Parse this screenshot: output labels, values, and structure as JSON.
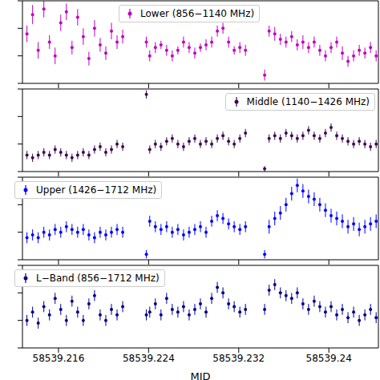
{
  "chart_data": {
    "type": "scatter",
    "xlabel": "MJD",
    "marker": "o",
    "tick_labels": "x",
    "xlim": [
      58539.2128,
      58539.2444
    ],
    "xticks": [
      58539.216,
      58539.224,
      58539.232,
      58539.24
    ],
    "ylim": [
      0,
      3
    ],
    "yticks": [
      0,
      1,
      2,
      3
    ],
    "x": [
      58539.2132,
      58539.2137,
      58539.2142,
      58539.2147,
      58539.2152,
      58539.2157,
      58539.2162,
      58539.2167,
      58539.2172,
      58539.2177,
      58539.2182,
      58539.2187,
      58539.2192,
      58539.2197,
      58539.2202,
      58539.2207,
      58539.2212,
      58539.2217,
      58539.2238,
      58539.2241,
      58539.2246,
      58539.2251,
      58539.2256,
      58539.2261,
      58539.2266,
      58539.2271,
      58539.2276,
      58539.2281,
      58539.2286,
      58539.2291,
      58539.2296,
      58539.2301,
      58539.2306,
      58539.2311,
      58539.2316,
      58539.2321,
      58539.2326,
      58539.2343,
      58539.2347,
      58539.2352,
      58539.2357,
      58539.2362,
      58539.2367,
      58539.2372,
      58539.2377,
      58539.2382,
      58539.2387,
      58539.2392,
      58539.2397,
      58539.2402,
      58539.2407,
      58539.2412,
      58539.2417,
      58539.2422,
      58539.2427,
      58539.2432,
      58539.2437,
      58539.2442
    ],
    "series": [
      {
        "name": "Lower (856−1140 MHz)",
        "color": "#bf00bf",
        "values": [
          1.8,
          2.5,
          1.2,
          2.7,
          1.5,
          1.0,
          2.2,
          2.6,
          1.3,
          2.4,
          1.7,
          0.9,
          2.0,
          1.4,
          1.1,
          1.9,
          1.5,
          1.7,
          1.5,
          1.0,
          1.3,
          1.4,
          1.2,
          1.0,
          1.2,
          1.5,
          1.3,
          1.1,
          1.3,
          1.4,
          1.5,
          1.9,
          2.0,
          1.5,
          1.2,
          1.3,
          1.2,
          0.3,
          1.9,
          1.8,
          1.6,
          1.5,
          1.7,
          1.4,
          1.5,
          1.3,
          1.5,
          1.2,
          1.0,
          1.3,
          1.5,
          1.1,
          0.8,
          1.0,
          1.2,
          1.1,
          1.3,
          1.0
        ],
        "errors": [
          0.3,
          0.35,
          0.3,
          0.3,
          0.25,
          0.3,
          0.3,
          0.3,
          0.25,
          0.3,
          0.3,
          0.25,
          0.3,
          0.25,
          0.25,
          0.3,
          0.25,
          0.25,
          0.2,
          0.2,
          0.2,
          0.15,
          0.2,
          0.2,
          0.15,
          0.2,
          0.2,
          0.2,
          0.15,
          0.2,
          0.2,
          0.2,
          0.2,
          0.2,
          0.15,
          0.2,
          0.2,
          0.2,
          0.2,
          0.25,
          0.2,
          0.2,
          0.2,
          0.2,
          0.25,
          0.2,
          0.2,
          0.2,
          0.2,
          0.2,
          0.2,
          0.25,
          0.2,
          0.2,
          0.2,
          0.2,
          0.2,
          0.2
        ]
      },
      {
        "name": "Middle (1140−1426 MHz)",
        "color": "#3d0a4f",
        "values": [
          0.6,
          0.5,
          0.6,
          0.7,
          0.6,
          0.8,
          0.7,
          0.6,
          0.5,
          0.6,
          0.7,
          0.6,
          0.8,
          0.9,
          0.7,
          0.8,
          1.0,
          0.9,
          2.8,
          0.8,
          1.0,
          0.9,
          1.1,
          1.2,
          1.0,
          0.9,
          1.1,
          1.2,
          1.0,
          1.1,
          1.0,
          1.2,
          1.3,
          1.1,
          1.0,
          1.2,
          1.4,
          0.1,
          1.2,
          1.3,
          1.2,
          1.4,
          1.3,
          1.2,
          1.3,
          1.5,
          1.3,
          1.2,
          1.4,
          1.6,
          1.3,
          1.2,
          1.1,
          1.0,
          1.1,
          1.0,
          0.9,
          1.0
        ],
        "errors": [
          0.15,
          0.15,
          0.15,
          0.15,
          0.15,
          0.15,
          0.15,
          0.15,
          0.15,
          0.15,
          0.15,
          0.15,
          0.15,
          0.15,
          0.15,
          0.15,
          0.15,
          0.15,
          0.15,
          0.15,
          0.15,
          0.15,
          0.15,
          0.15,
          0.15,
          0.15,
          0.15,
          0.15,
          0.15,
          0.15,
          0.15,
          0.15,
          0.15,
          0.15,
          0.15,
          0.15,
          0.15,
          0.1,
          0.15,
          0.15,
          0.15,
          0.15,
          0.15,
          0.15,
          0.15,
          0.15,
          0.15,
          0.15,
          0.15,
          0.15,
          0.15,
          0.15,
          0.15,
          0.15,
          0.15,
          0.15,
          0.15,
          0.15
        ]
      },
      {
        "name": "Upper (1426−1712 MHz)",
        "color": "#0000ff",
        "values": [
          0.8,
          0.9,
          0.8,
          1.0,
          0.9,
          1.1,
          1.0,
          1.2,
          1.1,
          1.0,
          1.1,
          0.9,
          0.8,
          1.0,
          0.9,
          1.0,
          1.1,
          1.0,
          0.2,
          1.4,
          1.2,
          1.1,
          1.2,
          1.0,
          1.1,
          0.9,
          1.0,
          1.1,
          1.2,
          1.0,
          1.4,
          1.6,
          1.5,
          1.3,
          1.2,
          1.1,
          1.2,
          0.2,
          1.2,
          1.5,
          1.7,
          2.0,
          2.4,
          2.7,
          2.5,
          2.3,
          2.2,
          2.0,
          1.8,
          1.6,
          1.5,
          1.4,
          1.2,
          1.3,
          1.1,
          1.2,
          1.3,
          1.4
        ],
        "errors": [
          0.2,
          0.2,
          0.2,
          0.2,
          0.2,
          0.2,
          0.2,
          0.2,
          0.2,
          0.2,
          0.2,
          0.2,
          0.2,
          0.2,
          0.2,
          0.2,
          0.2,
          0.2,
          0.15,
          0.2,
          0.2,
          0.2,
          0.2,
          0.2,
          0.2,
          0.2,
          0.2,
          0.2,
          0.2,
          0.2,
          0.2,
          0.2,
          0.2,
          0.2,
          0.2,
          0.2,
          0.2,
          0.15,
          0.25,
          0.25,
          0.25,
          0.25,
          0.25,
          0.25,
          0.25,
          0.25,
          0.25,
          0.25,
          0.25,
          0.25,
          0.25,
          0.25,
          0.25,
          0.25,
          0.25,
          0.25,
          0.25,
          0.25
        ]
      },
      {
        "name": "L−Band (856−1712 MHz)",
        "color": "#00008b",
        "values": [
          1.0,
          1.3,
          0.9,
          1.5,
          1.2,
          1.8,
          1.4,
          1.0,
          1.7,
          1.3,
          1.0,
          1.6,
          1.9,
          1.2,
          1.0,
          1.4,
          1.2,
          1.5,
          1.2,
          1.3,
          1.6,
          1.2,
          1.8,
          1.4,
          1.3,
          1.5,
          1.2,
          1.4,
          1.6,
          1.3,
          1.8,
          2.2,
          2.0,
          1.6,
          1.5,
          1.3,
          1.4,
          1.4,
          2.1,
          2.3,
          2.0,
          1.9,
          1.8,
          2.0,
          1.6,
          1.4,
          1.7,
          1.5,
          1.3,
          1.5,
          1.2,
          1.4,
          1.1,
          1.3,
          1.0,
          1.2,
          1.4,
          1.1
        ],
        "errors": [
          0.2,
          0.2,
          0.2,
          0.2,
          0.2,
          0.2,
          0.2,
          0.2,
          0.2,
          0.2,
          0.2,
          0.2,
          0.2,
          0.2,
          0.2,
          0.2,
          0.2,
          0.2,
          0.2,
          0.2,
          0.2,
          0.2,
          0.2,
          0.2,
          0.2,
          0.2,
          0.2,
          0.2,
          0.2,
          0.2,
          0.2,
          0.2,
          0.2,
          0.2,
          0.2,
          0.2,
          0.2,
          0.2,
          0.2,
          0.2,
          0.2,
          0.2,
          0.2,
          0.2,
          0.2,
          0.2,
          0.2,
          0.2,
          0.2,
          0.2,
          0.2,
          0.2,
          0.2,
          0.2,
          0.2,
          0.2,
          0.2,
          0.2
        ]
      }
    ]
  }
}
